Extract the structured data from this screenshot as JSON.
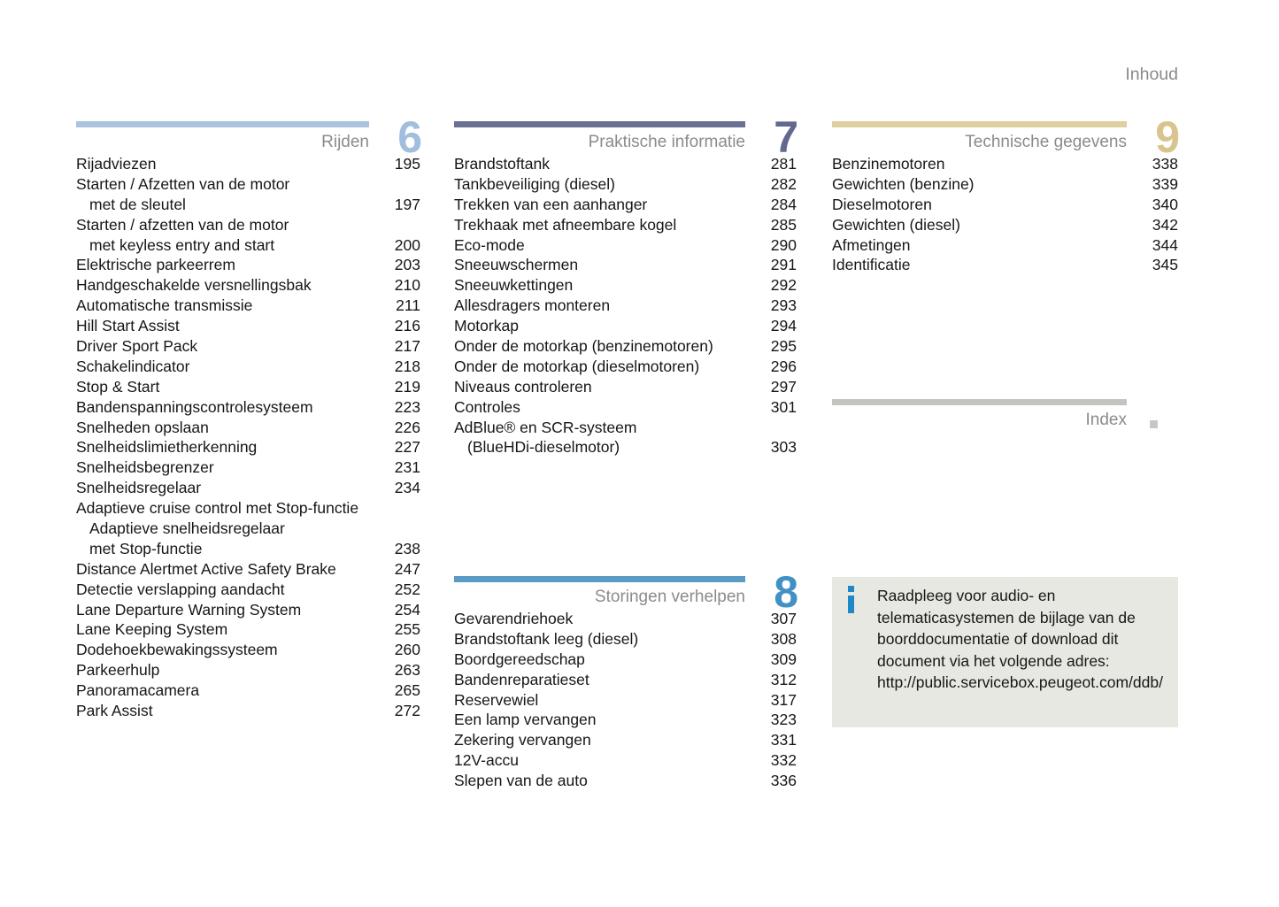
{
  "page": {
    "header_label": "Inhoud",
    "background_color": "#ffffff",
    "text_color": "#161616",
    "muted_color": "#8b8b8b"
  },
  "sections": [
    {
      "id": "rijden",
      "number": "6",
      "title": "Rijden",
      "bar_color": "#aac4e0",
      "number_color": "#a2bedd",
      "entries": [
        {
          "lines": [
            "Rijadviezen"
          ],
          "page": "195"
        },
        {
          "lines": [
            "Starten / Afzetten van de motor",
            "met de sleutel"
          ],
          "page": "197"
        },
        {
          "lines": [
            "Starten / afzetten van de motor",
            "met keyless entry and start"
          ],
          "page": "200"
        },
        {
          "lines": [
            "Elektrische parkeerrem"
          ],
          "page": "203"
        },
        {
          "lines": [
            "Handgeschakelde versnellingsbak"
          ],
          "page": "210"
        },
        {
          "lines": [
            "Automatische transmissie"
          ],
          "page": "211"
        },
        {
          "lines": [
            "Hill Start Assist"
          ],
          "page": "216"
        },
        {
          "lines": [
            "Driver Sport Pack"
          ],
          "page": "217"
        },
        {
          "lines": [
            "Schakelindicator"
          ],
          "page": "218"
        },
        {
          "lines": [
            "Stop & Start"
          ],
          "page": "219"
        },
        {
          "lines": [
            "Bandenspanningscontrolesysteem"
          ],
          "page": "223"
        },
        {
          "lines": [
            "Snelheden opslaan"
          ],
          "page": "226"
        },
        {
          "lines": [
            "Snelheidslimietherkenning"
          ],
          "page": "227"
        },
        {
          "lines": [
            "Snelheidsbegrenzer"
          ],
          "page": "231"
        },
        {
          "lines": [
            "Snelheidsregelaar"
          ],
          "page": "234"
        },
        {
          "lines": [
            "Adaptieve cruise control met Stop-functie",
            "Adaptieve snelheidsregelaar",
            "met Stop-functie"
          ],
          "page": "238"
        },
        {
          "lines": [
            "Distance Alertmet Active Safety Brake"
          ],
          "page": "247"
        },
        {
          "lines": [
            "Detectie verslapping aandacht"
          ],
          "page": "252"
        },
        {
          "lines": [
            "Lane Departure Warning System"
          ],
          "page": "254"
        },
        {
          "lines": [
            "Lane Keeping System"
          ],
          "page": "255"
        },
        {
          "lines": [
            "Dodehoekbewakingssysteem"
          ],
          "page": "260"
        },
        {
          "lines": [
            "Parkeerhulp"
          ],
          "page": "263"
        },
        {
          "lines": [
            "Panoramacamera"
          ],
          "page": "265"
        },
        {
          "lines": [
            "Park Assist"
          ],
          "page": "272"
        }
      ]
    },
    {
      "id": "praktische-informatie",
      "number": "7",
      "title": "Praktische informatie",
      "bar_color": "#6b7092",
      "number_color": "#62688e",
      "entries": [
        {
          "lines": [
            "Brandstoftank"
          ],
          "page": "281"
        },
        {
          "lines": [
            "Tankbeveiliging (diesel)"
          ],
          "page": "282"
        },
        {
          "lines": [
            "Trekken van een aanhanger"
          ],
          "page": "284"
        },
        {
          "lines": [
            "Trekhaak met afneembare kogel"
          ],
          "page": "285"
        },
        {
          "lines": [
            "Eco-mode"
          ],
          "page": "290"
        },
        {
          "lines": [
            "Sneeuwschermen"
          ],
          "page": "291"
        },
        {
          "lines": [
            "Sneeuwkettingen"
          ],
          "page": "292"
        },
        {
          "lines": [
            "Allesdragers monteren"
          ],
          "page": "293"
        },
        {
          "lines": [
            "Motorkap"
          ],
          "page": "294"
        },
        {
          "lines": [
            "Onder de motorkap (benzinemotoren)"
          ],
          "page": "295"
        },
        {
          "lines": [
            "Onder de motorkap (dieselmotoren)"
          ],
          "page": "296"
        },
        {
          "lines": [
            "Niveaus controleren"
          ],
          "page": "297"
        },
        {
          "lines": [
            "Controles"
          ],
          "page": "301"
        },
        {
          "lines": [
            "AdBlue® en SCR-systeem",
            "(BlueHDi-dieselmotor)"
          ],
          "page": "303"
        }
      ]
    },
    {
      "id": "storingen-verhelpen",
      "number": "8",
      "title": "Storingen verhelpen",
      "bar_color": "#5b9cc6",
      "number_color": "#4191c4",
      "entries": [
        {
          "lines": [
            "Gevarendriehoek"
          ],
          "page": "307"
        },
        {
          "lines": [
            "Brandstoftank leeg (diesel)"
          ],
          "page": "308"
        },
        {
          "lines": [
            "Boordgereedschap"
          ],
          "page": "309"
        },
        {
          "lines": [
            "Bandenreparatieset"
          ],
          "page": "312"
        },
        {
          "lines": [
            "Reservewiel"
          ],
          "page": "317"
        },
        {
          "lines": [
            "Een lamp vervangen"
          ],
          "page": "323"
        },
        {
          "lines": [
            "Zekering vervangen"
          ],
          "page": "331"
        },
        {
          "lines": [
            "12V-accu"
          ],
          "page": "332"
        },
        {
          "lines": [
            "Slepen van de auto"
          ],
          "page": "336"
        }
      ]
    },
    {
      "id": "technische-gegevens",
      "number": "9",
      "title": "Technische gegevens",
      "bar_color": "#ddcfa0",
      "number_color": "#d8c48d",
      "entries": [
        {
          "lines": [
            "Benzinemotoren"
          ],
          "page": "338"
        },
        {
          "lines": [
            "Gewichten (benzine)"
          ],
          "page": "339"
        },
        {
          "lines": [
            "Dieselmotoren"
          ],
          "page": "340"
        },
        {
          "lines": [
            "Gewichten (diesel)"
          ],
          "page": "342"
        },
        {
          "lines": [
            "Afmetingen"
          ],
          "page": "344"
        },
        {
          "lines": [
            "Identificatie"
          ],
          "page": "345"
        }
      ]
    }
  ],
  "index_section": {
    "title": "Index",
    "bar_color": "#c3c3bf",
    "marker_color": "#c6c6c2"
  },
  "info_box": {
    "background_color": "#e8e8e2",
    "icon": "info-i",
    "icon_color": "#1e88c8",
    "text_lines": [
      "Raadpleeg voor audio- en",
      "telematicasystemen de bijlage van de",
      "boorddocumentatie of download dit",
      "document via het volgende adres:",
      "http://public.servicebox.peugeot.com/ddb/"
    ]
  }
}
